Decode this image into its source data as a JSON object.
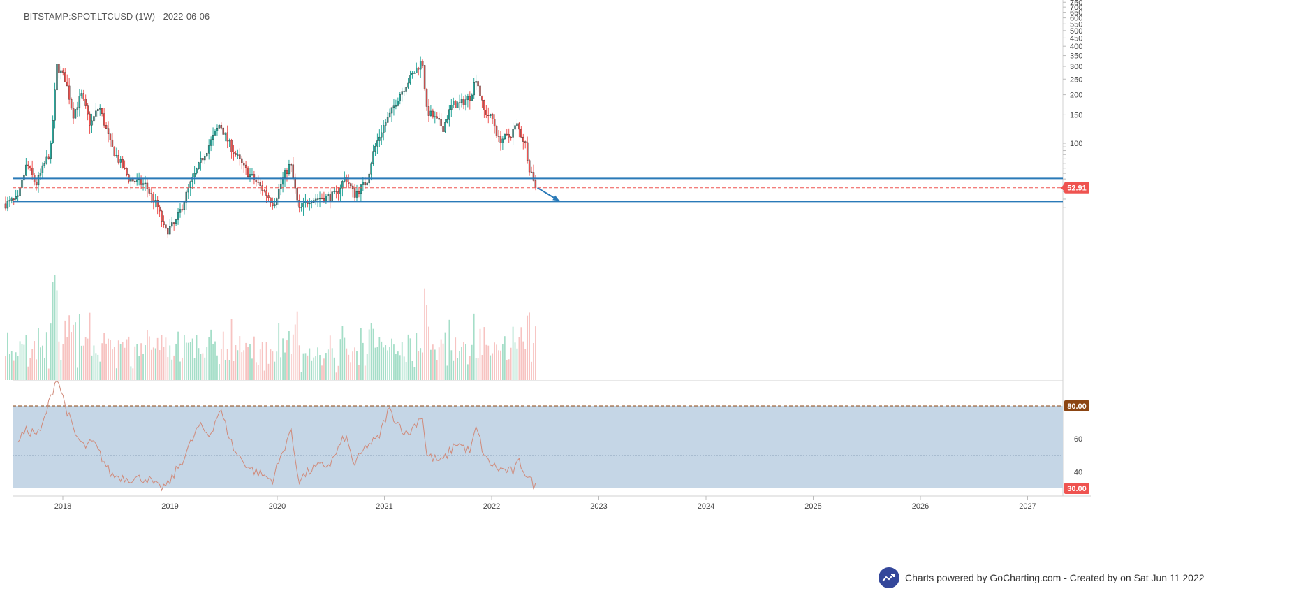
{
  "header": {
    "title": "BITSTAMP:SPOT:LTCUSD (1W) - 2022-06-06"
  },
  "credit": {
    "text": "Charts powered by GoCharting.com - Created by  on Sat Jun 11 2022",
    "icon": "trend-chart-icon"
  },
  "colors": {
    "up": "#26a69a",
    "down": "#ef5350",
    "vol_up": "#a5dec8",
    "vol_down": "#f7c3c1",
    "level": "#2a7ab8",
    "rsi_line": "#d08a7a",
    "rsi_band": "#c5d6e6",
    "rsi_upper": "#8b4513",
    "current_price": "#ef5350"
  },
  "chart_data": [
    {
      "type": "candlestick",
      "name": "price",
      "y_scale": "log",
      "x_ticks": [
        "2018",
        "2019",
        "2020",
        "2021",
        "2022",
        "2023",
        "2024",
        "2025",
        "2026",
        "2027"
      ],
      "y_ticks": [
        40,
        45,
        50,
        55,
        60,
        65,
        70,
        75,
        80,
        85,
        90,
        95,
        100,
        150,
        200,
        250,
        300,
        350,
        400,
        450,
        500,
        550,
        600,
        650,
        700,
        750
      ],
      "y_tick_labels": [
        "",
        "",
        "",
        "",
        "",
        "",
        "",
        "",
        "",
        "",
        "",
        "",
        "100",
        "150",
        "200",
        "250",
        "300",
        "350",
        "400",
        "450",
        "500",
        "550",
        "600",
        "650",
        "700",
        "750"
      ],
      "horizontal_levels": [
        60.5,
        43.5
      ],
      "current_price": 52.91,
      "current_price_label": "52.91",
      "projection_arrow": {
        "from": [
          "2022-06-06",
          52.91
        ],
        "to": [
          "2022-08-20",
          43.8
        ]
      },
      "anchors": [
        [
          "2017-06-20",
          42
        ],
        [
          "2017-08-01",
          45
        ],
        [
          "2017-09-01",
          75
        ],
        [
          "2017-10-01",
          55
        ],
        [
          "2017-11-20",
          90
        ],
        [
          "2017-12-12",
          300
        ],
        [
          "2018-01-10",
          250
        ],
        [
          "2018-02-05",
          150
        ],
        [
          "2018-03-05",
          200
        ],
        [
          "2018-04-05",
          130
        ],
        [
          "2018-05-05",
          170
        ],
        [
          "2018-06-15",
          95
        ],
        [
          "2018-08-15",
          60
        ],
        [
          "2018-10-10",
          55
        ],
        [
          "2018-11-20",
          40
        ],
        [
          "2018-12-15",
          28
        ],
        [
          "2019-01-20",
          32
        ],
        [
          "2019-03-10",
          55
        ],
        [
          "2019-04-20",
          80
        ],
        [
          "2019-06-20",
          132
        ],
        [
          "2019-07-20",
          100
        ],
        [
          "2019-09-10",
          70
        ],
        [
          "2019-11-20",
          50
        ],
        [
          "2019-12-20",
          42
        ],
        [
          "2020-01-20",
          60
        ],
        [
          "2020-02-15",
          75
        ],
        [
          "2020-03-15",
          38
        ],
        [
          "2020-04-20",
          45
        ],
        [
          "2020-06-10",
          46
        ],
        [
          "2020-07-20",
          48
        ],
        [
          "2020-08-20",
          62
        ],
        [
          "2020-09-20",
          48
        ],
        [
          "2020-11-01",
          58
        ],
        [
          "2020-11-25",
          90
        ],
        [
          "2020-12-25",
          125
        ],
        [
          "2021-01-20",
          150
        ],
        [
          "2021-02-20",
          200
        ],
        [
          "2021-04-15",
          280
        ],
        [
          "2021-05-10",
          330
        ],
        [
          "2021-05-25",
          160
        ],
        [
          "2021-07-20",
          125
        ],
        [
          "2021-08-20",
          175
        ],
        [
          "2021-09-15",
          175
        ],
        [
          "2021-10-20",
          195
        ],
        [
          "2021-11-10",
          260
        ],
        [
          "2021-12-05",
          160
        ],
        [
          "2022-01-05",
          140
        ],
        [
          "2022-01-25",
          105
        ],
        [
          "2022-03-01",
          110
        ],
        [
          "2022-03-28",
          130
        ],
        [
          "2022-04-25",
          100
        ],
        [
          "2022-05-10",
          70
        ],
        [
          "2022-05-25",
          60
        ],
        [
          "2022-06-06",
          52.91
        ]
      ]
    },
    {
      "type": "bar",
      "name": "volume",
      "note": "weekly volume histogram, no axis labels"
    },
    {
      "type": "line",
      "name": "rsi",
      "y_range": [
        20,
        100
      ],
      "y_ticks": [
        40,
        60
      ],
      "band": [
        30,
        80
      ],
      "band_labels": [
        "30.00",
        "80.00"
      ],
      "mid_line": 50,
      "anchors": [
        [
          "2017-08-01",
          60
        ],
        [
          "2017-09-01",
          65
        ],
        [
          "2017-10-15",
          63
        ],
        [
          "2017-12-12",
          98
        ],
        [
          "2018-01-10",
          80
        ],
        [
          "2018-02-10",
          63
        ],
        [
          "2018-03-15",
          55
        ],
        [
          "2018-04-15",
          58
        ],
        [
          "2018-06-15",
          38
        ],
        [
          "2018-08-15",
          36
        ],
        [
          "2018-10-15",
          36
        ],
        [
          "2018-11-25",
          30
        ],
        [
          "2018-12-25",
          32
        ],
        [
          "2019-02-15",
          48
        ],
        [
          "2019-04-10",
          68
        ],
        [
          "2019-05-15",
          62
        ],
        [
          "2019-06-20",
          78
        ],
        [
          "2019-08-10",
          52
        ],
        [
          "2019-10-01",
          42
        ],
        [
          "2019-12-15",
          35
        ],
        [
          "2020-01-20",
          52
        ],
        [
          "2020-02-15",
          66
        ],
        [
          "2020-03-15",
          35
        ],
        [
          "2020-05-01",
          42
        ],
        [
          "2020-07-01",
          45
        ],
        [
          "2020-08-20",
          62
        ],
        [
          "2020-09-20",
          44
        ],
        [
          "2020-11-01",
          56
        ],
        [
          "2020-12-10",
          60
        ],
        [
          "2021-01-15",
          78
        ],
        [
          "2021-02-15",
          70
        ],
        [
          "2021-03-20",
          62
        ],
        [
          "2021-05-10",
          75
        ],
        [
          "2021-05-25",
          50
        ],
        [
          "2021-07-15",
          46
        ],
        [
          "2021-09-05",
          58
        ],
        [
          "2021-10-20",
          52
        ],
        [
          "2021-11-10",
          67
        ],
        [
          "2021-12-10",
          48
        ],
        [
          "2022-01-20",
          42
        ],
        [
          "2022-03-15",
          40
        ],
        [
          "2022-04-05",
          46
        ],
        [
          "2022-05-01",
          38
        ],
        [
          "2022-05-25",
          32
        ],
        [
          "2022-06-06",
          30
        ]
      ]
    }
  ]
}
